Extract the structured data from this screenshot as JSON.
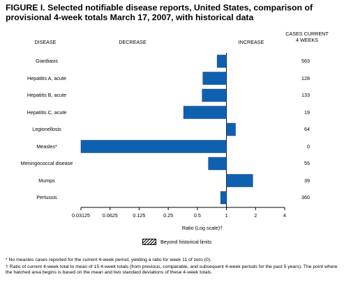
{
  "title": "FIGURE I. Selected notifiable disease reports, United States, comparison of provisional 4-week totals March 17, 2007, with historical data",
  "headers": {
    "disease": "DISEASE",
    "decrease": "DECREASE",
    "increase": "INCREASE",
    "cases_line1": "CASES CURRENT",
    "cases_line2": "4 WEEKS"
  },
  "chart_data": {
    "type": "bar",
    "orientation": "horizontal",
    "xscale": "log2",
    "xlabel": "Ratio (Log scale)†",
    "xlim": [
      0.03125,
      4
    ],
    "xticks": [
      "0.03125",
      "0.0625",
      "0.125",
      "0.25",
      "0.5",
      "1",
      "2",
      "4"
    ],
    "reference_line": 1,
    "categories": [
      "Giardiasis",
      "Hepatitis A, acute",
      "Hepatitis B, acute",
      "Hepatitis C, acute",
      "Legionellosis",
      "Measles*",
      "Meningococcal disease",
      "Mumps",
      "Pertussis"
    ],
    "values": [
      0.8,
      0.57,
      0.56,
      0.36,
      1.24,
      0.03125,
      0.65,
      1.87,
      0.87
    ],
    "cases_current_4_weeks": [
      "563",
      "128",
      "133",
      "19",
      "64",
      "0",
      "55",
      "39",
      "360"
    ],
    "bar_color": "#1060b0",
    "legend": {
      "label": "Beyond historical limits",
      "pattern": "hatched"
    }
  },
  "footnotes": [
    "* No measles cases reported for the current 4-week period, yielding a ratio for week 11 of zero (0).",
    "† Ratio of current 4-week total to mean of 15 4-week totals (from previous, comparable, and subsequent 4-week periods for the past 5 years). The point where the hatched area begins is based on the mean and two standard deviations of these 4-week totals."
  ]
}
